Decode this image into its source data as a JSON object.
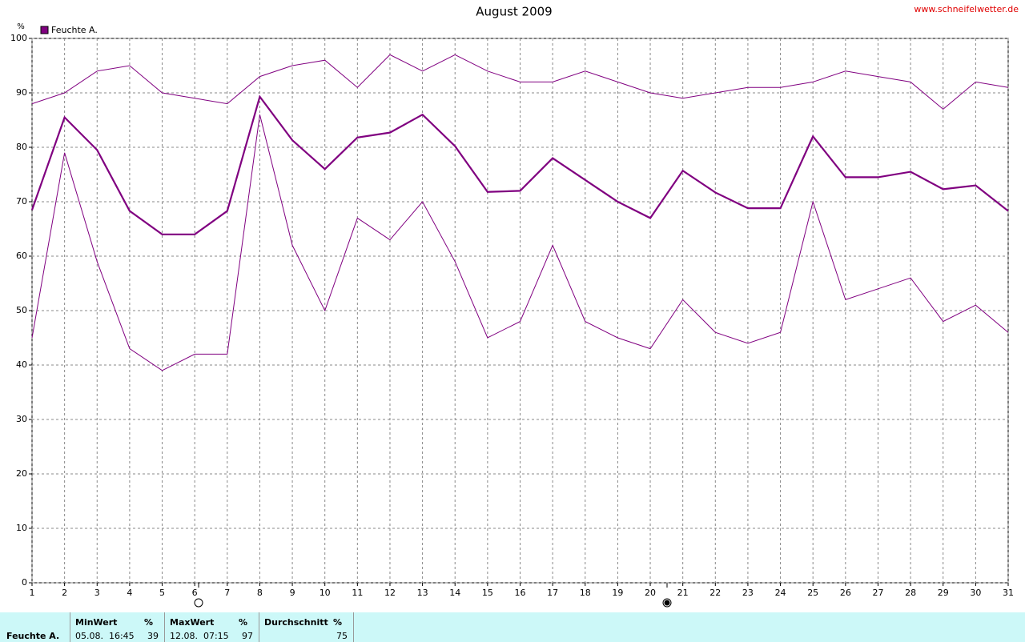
{
  "chart_data": {
    "type": "line",
    "title": "August 2009",
    "source": "www.schneifelwetter.de",
    "ylabel": "%",
    "x": [
      1,
      2,
      3,
      4,
      5,
      6,
      7,
      8,
      9,
      10,
      11,
      12,
      13,
      14,
      15,
      16,
      17,
      18,
      19,
      20,
      21,
      22,
      23,
      24,
      25,
      26,
      27,
      28,
      29,
      30,
      31
    ],
    "xlim": [
      1,
      31
    ],
    "xticks": [
      1,
      2,
      3,
      4,
      5,
      6,
      7,
      8,
      9,
      10,
      11,
      12,
      13,
      14,
      15,
      16,
      17,
      18,
      19,
      20,
      21,
      22,
      23,
      24,
      25,
      26,
      27,
      28,
      29,
      30,
      31
    ],
    "ylim": [
      0,
      100
    ],
    "yticks": [
      0,
      10,
      20,
      30,
      40,
      50,
      60,
      70,
      80,
      90,
      100
    ],
    "grid": true,
    "legend": "top-left",
    "series": [
      {
        "color": "#800080",
        "width": 1,
        "values": [
          88,
          90,
          94,
          95,
          90,
          89,
          88,
          93,
          95,
          96,
          91,
          97,
          94,
          97,
          94,
          92,
          92,
          94,
          92,
          90,
          89,
          90,
          91,
          91,
          92,
          94,
          93,
          92,
          87,
          92,
          91
        ]
      },
      {
        "name": "Feuchte A.",
        "color": "#800080",
        "width": 2.2,
        "values": [
          68.5,
          85.5,
          79.5,
          68.3,
          64,
          64,
          68.3,
          89.3,
          81.3,
          76,
          81.8,
          82.7,
          86,
          80.2,
          71.8,
          72,
          78,
          74,
          70,
          67,
          75.7,
          71.7,
          68.8,
          68.8,
          82,
          74.5,
          74.5,
          75.5,
          72.3,
          73,
          68.3
        ]
      },
      {
        "color": "#800080",
        "width": 1,
        "values": [
          45,
          79,
          59,
          43,
          39,
          42,
          42,
          86,
          62,
          50,
          67,
          63,
          70,
          59,
          45,
          48,
          62,
          48,
          45,
          43,
          52,
          46,
          44,
          46,
          70,
          52,
          54,
          56,
          48,
          51,
          46
        ]
      }
    ]
  },
  "stats": {
    "label": "Feuchte A.",
    "columns": [
      {
        "header": "MinWert",
        "unit": "%",
        "time": "05.08.  16:45",
        "value": "39"
      },
      {
        "header": "MaxWert",
        "unit": "%",
        "time": "12.08.  07:15",
        "value": "97"
      },
      {
        "header": "Durchschnitt",
        "unit": "%",
        "time": "",
        "value": "75"
      }
    ]
  }
}
